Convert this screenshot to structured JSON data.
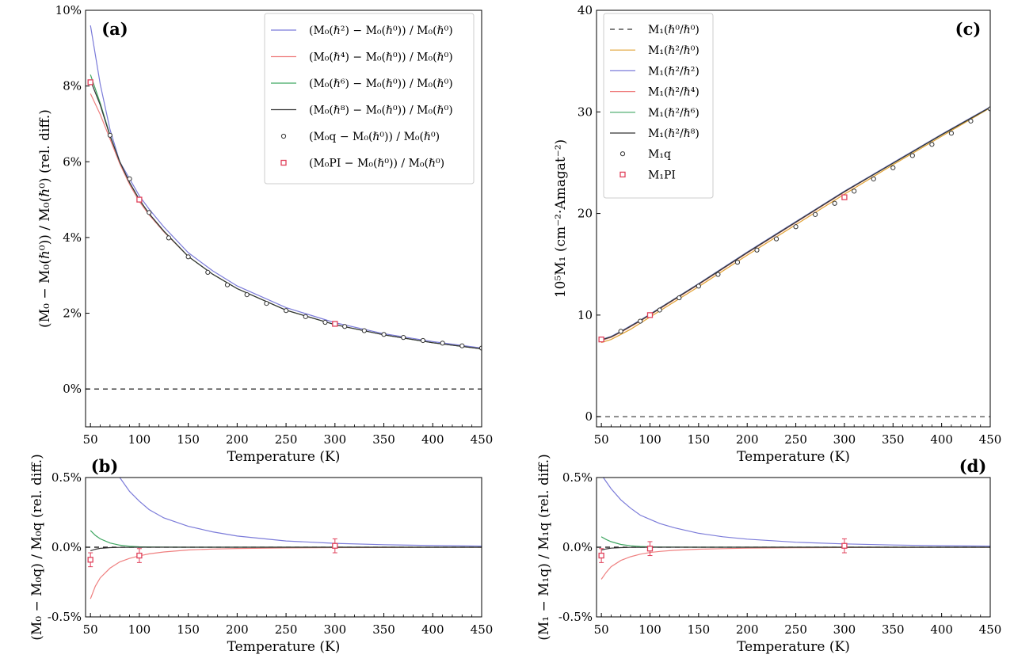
{
  "chart_data": [
    {
      "panel": "(a)",
      "type": "line",
      "xlabel": "Temperature (K)",
      "ylabel": "(M₀ − M₀(ℏ⁰)) / M₀(ℏ⁰) (rel. diff.)",
      "xlim": [
        45,
        450
      ],
      "ylim": [
        -1,
        10
      ],
      "x_ticks": [
        "50",
        "100",
        "150",
        "200",
        "250",
        "300",
        "350",
        "400",
        "450"
      ],
      "y_ticks": [
        "0%",
        "2%",
        "4%",
        "6%",
        "8%",
        "10%"
      ],
      "y_tick_values": [
        0,
        2,
        4,
        6,
        8,
        10
      ],
      "legend_position": "top-right",
      "reference_line": {
        "y": 0,
        "style": "dashed",
        "color": "#000000"
      },
      "series": [
        {
          "name": "(M₀(ℏ²) − M₀(ℏ⁰)) / M₀(ℏ⁰)",
          "style": "line",
          "color": "#7b7bd9",
          "x": [
            50,
            60,
            70,
            80,
            90,
            100,
            110,
            125,
            150,
            175,
            200,
            250,
            300,
            350,
            400,
            450
          ],
          "y": [
            9.6,
            8.05,
            6.85,
            6.0,
            5.55,
            5.1,
            4.75,
            4.28,
            3.6,
            3.12,
            2.72,
            2.15,
            1.75,
            1.46,
            1.25,
            1.08
          ]
        },
        {
          "name": "(M₀(ℏ⁴) − M₀(ℏ⁰)) / M₀(ℏ⁰)",
          "style": "line",
          "color": "#ef8080",
          "x": [
            50,
            60,
            70,
            80,
            90,
            100,
            110,
            125,
            150,
            175,
            200,
            250,
            300,
            350,
            400,
            450
          ],
          "y": [
            7.8,
            7.25,
            6.6,
            5.95,
            5.4,
            4.95,
            4.6,
            4.15,
            3.5,
            3.03,
            2.65,
            2.08,
            1.7,
            1.43,
            1.22,
            1.06
          ]
        },
        {
          "name": "(M₀(ℏ⁶) − M₀(ℏ⁰)) / M₀(ℏ⁰)",
          "style": "line",
          "color": "#3fa661",
          "x": [
            50,
            60,
            70,
            80,
            90,
            100,
            110,
            125,
            150,
            175,
            200,
            250,
            300,
            350,
            400,
            450
          ],
          "y": [
            8.3,
            7.55,
            6.7,
            6.0,
            5.45,
            5.0,
            4.63,
            4.17,
            3.5,
            3.03,
            2.65,
            2.08,
            1.7,
            1.43,
            1.22,
            1.06
          ]
        },
        {
          "name": "(M₀(ℏ⁸) − M₀(ℏ⁰)) / M₀(ℏ⁰)",
          "style": "line",
          "color": "#333333",
          "x": [
            50,
            60,
            70,
            80,
            90,
            100,
            110,
            125,
            150,
            175,
            200,
            250,
            300,
            350,
            400,
            450
          ],
          "y": [
            8.15,
            7.5,
            6.68,
            6.0,
            5.45,
            5.0,
            4.63,
            4.17,
            3.5,
            3.03,
            2.65,
            2.08,
            1.7,
            1.43,
            1.22,
            1.06
          ]
        },
        {
          "name": "(M₀q − M₀(ℏ⁰)) / M₀(ℏ⁰)",
          "style": "circle",
          "color": "#333333",
          "x": [
            50,
            70,
            90,
            110,
            130,
            150,
            170,
            190,
            210,
            230,
            250,
            270,
            290,
            310,
            330,
            350,
            370,
            390,
            410,
            430,
            450
          ],
          "y": [
            8.1,
            6.7,
            5.55,
            4.66,
            3.99,
            3.49,
            3.08,
            2.75,
            2.49,
            2.26,
            2.07,
            1.91,
            1.76,
            1.65,
            1.54,
            1.44,
            1.36,
            1.28,
            1.21,
            1.14,
            1.08
          ]
        },
        {
          "name": "(M₀PI − M₀(ℏ⁰)) / M₀(ℏ⁰)",
          "style": "square",
          "color": "#e0405a",
          "x": [
            50,
            100,
            300
          ],
          "y": [
            8.1,
            5.0,
            1.72
          ]
        }
      ]
    },
    {
      "panel": "(b)",
      "type": "line",
      "xlabel": "Temperature (K)",
      "ylabel": "(M₀ − M₀q) / M₀q (rel. diff.)",
      "xlim": [
        45,
        450
      ],
      "ylim": [
        -0.5,
        0.5
      ],
      "x_ticks": [
        "50",
        "100",
        "150",
        "200",
        "250",
        "300",
        "350",
        "400",
        "450"
      ],
      "y_ticks": [
        "-0.5%",
        "0.0%",
        "0.5%"
      ],
      "y_tick_values": [
        -0.5,
        0,
        0.5
      ],
      "reference_line": {
        "y": 0,
        "style": "dashed",
        "color": "#000000"
      },
      "series": [
        {
          "style": "line",
          "color": "#7b7bd9",
          "x": [
            80,
            90,
            100,
            110,
            125,
            150,
            175,
            200,
            250,
            300,
            350,
            400,
            450
          ],
          "y": [
            0.5,
            0.4,
            0.33,
            0.27,
            0.21,
            0.15,
            0.11,
            0.08,
            0.045,
            0.028,
            0.018,
            0.012,
            0.008
          ]
        },
        {
          "style": "line",
          "color": "#ef8080",
          "x": [
            50,
            55,
            60,
            70,
            80,
            90,
            100,
            110,
            125,
            150,
            175,
            200,
            250,
            300,
            350,
            400,
            450
          ],
          "y": [
            -0.37,
            -0.28,
            -0.22,
            -0.15,
            -0.105,
            -0.08,
            -0.062,
            -0.048,
            -0.034,
            -0.02,
            -0.013,
            -0.009,
            -0.005,
            -0.003,
            -0.002,
            -0.001,
            -0.0008
          ]
        },
        {
          "style": "line",
          "color": "#3fa661",
          "x": [
            50,
            55,
            60,
            70,
            80,
            90,
            100,
            110,
            125,
            150,
            450
          ],
          "y": [
            0.12,
            0.085,
            0.06,
            0.03,
            0.015,
            0.007,
            0.003,
            0.0015,
            0.0006,
            0.0002,
            0
          ]
        },
        {
          "style": "line",
          "color": "#333333",
          "x": [
            50,
            55,
            60,
            70,
            80,
            90,
            100,
            450
          ],
          "y": [
            -0.025,
            -0.015,
            -0.008,
            -0.003,
            -0.001,
            -0.0005,
            -0.0002,
            0
          ]
        },
        {
          "style": "errorbar-square",
          "color": "#e0405a",
          "x": [
            50,
            100,
            300
          ],
          "y": [
            -0.09,
            -0.06,
            0.01
          ],
          "error": [
            0.05,
            0.05,
            0.05
          ]
        }
      ]
    },
    {
      "panel": "(c)",
      "type": "line",
      "xlabel": "Temperature (K)",
      "ylabel": "10⁵M₁ (cm⁻²·Amagat⁻²)",
      "xlim": [
        45,
        450
      ],
      "ylim": [
        -1,
        40
      ],
      "x_ticks": [
        "50",
        "100",
        "150",
        "200",
        "250",
        "300",
        "350",
        "400",
        "450"
      ],
      "y_ticks": [
        "0",
        "10",
        "20",
        "30",
        "40"
      ],
      "y_tick_values": [
        0,
        10,
        20,
        30,
        40
      ],
      "legend_position": "top-left",
      "series": [
        {
          "name": "M₁(ℏ⁰/ℏ⁰)",
          "style": "dashed",
          "color": "#333333",
          "x": [
            45,
            450
          ],
          "y": [
            0,
            0
          ]
        },
        {
          "name": "M₁(ℏ²/ℏ⁰)",
          "style": "line",
          "color": "#e0a030",
          "x": [
            50,
            60,
            70,
            80,
            90,
            100,
            120,
            150,
            200,
            250,
            300,
            350,
            400,
            450
          ],
          "y": [
            7.3,
            7.6,
            8.1,
            8.6,
            9.2,
            9.8,
            11.0,
            12.8,
            15.9,
            18.9,
            21.9,
            24.8,
            27.6,
            30.4
          ]
        },
        {
          "name": "M₁(ℏ²/ℏ²)",
          "style": "line",
          "color": "#7b7bd9",
          "x": [
            50,
            60,
            70,
            80,
            90,
            100,
            120,
            150,
            200,
            250,
            300,
            350,
            400,
            450
          ],
          "y": [
            7.6,
            7.9,
            8.4,
            8.95,
            9.5,
            10.1,
            11.3,
            13.1,
            16.2,
            19.2,
            22.2,
            25.0,
            27.8,
            30.5
          ]
        },
        {
          "name": "M₁(ℏ²/ℏ⁴)",
          "style": "line",
          "color": "#ef8080",
          "x": [
            50,
            60,
            70,
            80,
            90,
            100,
            120,
            150,
            200,
            250,
            300,
            350,
            400,
            450
          ],
          "y": [
            7.5,
            7.8,
            8.3,
            8.85,
            9.4,
            10.0,
            11.2,
            13.0,
            16.1,
            19.1,
            22.1,
            24.95,
            27.75,
            30.45
          ]
        },
        {
          "name": "M₁(ℏ²/ℏ⁶)",
          "style": "line",
          "color": "#3fa661",
          "x": [
            50,
            60,
            70,
            80,
            90,
            100,
            120,
            150,
            200,
            250,
            300,
            350,
            400,
            450
          ],
          "y": [
            7.55,
            7.85,
            8.35,
            8.9,
            9.45,
            10.05,
            11.25,
            13.05,
            16.15,
            19.15,
            22.15,
            24.95,
            27.75,
            30.45
          ]
        },
        {
          "name": "M₁(ℏ²/ℏ⁸)",
          "style": "line",
          "color": "#333333",
          "x": [
            50,
            60,
            70,
            80,
            90,
            100,
            120,
            150,
            200,
            250,
            300,
            350,
            400,
            450
          ],
          "y": [
            7.55,
            7.85,
            8.35,
            8.9,
            9.45,
            10.05,
            11.25,
            13.05,
            16.15,
            19.15,
            22.15,
            24.95,
            27.75,
            30.45
          ]
        },
        {
          "name": "M₁q",
          "style": "circle",
          "color": "#333333",
          "x": [
            50,
            70,
            90,
            110,
            130,
            150,
            170,
            190,
            210,
            230,
            250,
            270,
            290,
            310,
            330,
            350,
            370,
            390,
            410,
            430,
            450
          ],
          "y": [
            7.6,
            8.4,
            9.4,
            10.5,
            11.7,
            12.85,
            14.0,
            15.2,
            16.4,
            17.5,
            18.7,
            19.9,
            21.0,
            22.2,
            23.4,
            24.5,
            25.7,
            26.8,
            27.9,
            29.1,
            30.3
          ]
        },
        {
          "name": "M₁PI",
          "style": "square",
          "color": "#e0405a",
          "x": [
            50,
            100,
            300
          ],
          "y": [
            7.6,
            10.0,
            21.6
          ]
        }
      ]
    },
    {
      "panel": "(d)",
      "type": "line",
      "xlabel": "Temperature (K)",
      "ylabel": "(M₁ − M₁q) / M₁q (rel. diff.)",
      "xlim": [
        45,
        450
      ],
      "ylim": [
        -0.5,
        0.5
      ],
      "x_ticks": [
        "50",
        "100",
        "150",
        "200",
        "250",
        "300",
        "350",
        "400",
        "450"
      ],
      "y_ticks": [
        "-0.5%",
        "0.0%",
        "0.5%"
      ],
      "y_tick_values": [
        -0.5,
        0,
        0.5
      ],
      "reference_line": {
        "y": 0,
        "style": "dashed",
        "color": "#000000"
      },
      "series": [
        {
          "style": "line",
          "color": "#7b7bd9",
          "x": [
            50,
            60,
            70,
            80,
            90,
            100,
            110,
            125,
            150,
            175,
            200,
            250,
            300,
            350,
            400,
            450
          ],
          "y": [
            0.52,
            0.42,
            0.34,
            0.28,
            0.23,
            0.2,
            0.17,
            0.14,
            0.1,
            0.075,
            0.058,
            0.036,
            0.024,
            0.016,
            0.011,
            0.008
          ]
        },
        {
          "style": "line",
          "color": "#ef8080",
          "x": [
            50,
            55,
            60,
            70,
            80,
            90,
            100,
            110,
            125,
            150,
            175,
            200,
            250,
            300,
            350,
            400,
            450
          ],
          "y": [
            -0.23,
            -0.18,
            -0.14,
            -0.095,
            -0.068,
            -0.05,
            -0.038,
            -0.03,
            -0.022,
            -0.014,
            -0.01,
            -0.007,
            -0.004,
            -0.0025,
            -0.0015,
            -0.001,
            -0.0008
          ]
        },
        {
          "style": "line",
          "color": "#3fa661",
          "x": [
            50,
            55,
            60,
            70,
            80,
            90,
            100,
            110,
            125,
            150,
            450
          ],
          "y": [
            0.075,
            0.055,
            0.04,
            0.02,
            0.01,
            0.005,
            0.0025,
            0.001,
            0.0004,
            0.0001,
            0
          ]
        },
        {
          "style": "line",
          "color": "#333333",
          "x": [
            50,
            55,
            60,
            70,
            80,
            90,
            100,
            450
          ],
          "y": [
            -0.02,
            -0.012,
            -0.007,
            -0.003,
            -0.001,
            -0.0005,
            -0.0002,
            0
          ]
        },
        {
          "style": "errorbar-square",
          "color": "#e0405a",
          "x": [
            50,
            100,
            300
          ],
          "y": [
            -0.06,
            -0.01,
            0.01
          ],
          "error": [
            0.05,
            0.05,
            0.05
          ]
        }
      ]
    }
  ]
}
